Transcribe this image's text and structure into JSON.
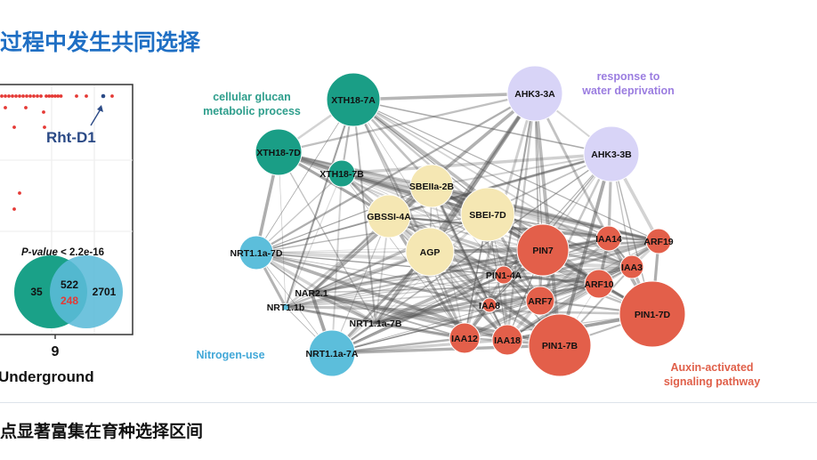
{
  "title": "过程中发生共同选择",
  "caption": "点显著富集在育种选择区间",
  "panel_left": {
    "gene_label": "Rht-D1",
    "pvalue_prefix": "P-value",
    "pvalue_rest": " < 2.2e-16",
    "venn_left_only": "35",
    "venn_overlap": "522",
    "venn_overlap_sub": "248",
    "venn_right_only": "2701",
    "x_tick": "9",
    "x_label": "Underground",
    "colors": {
      "left_circle": "#1aa188",
      "right_circle": "#5bbbd8",
      "highlight": "#e53935",
      "dot": "#e53935",
      "gene": "#2b4a86"
    }
  },
  "network": {
    "groups": [
      {
        "id": "glucan",
        "label_lines": [
          "cellular glucan",
          "metabolic process"
        ],
        "color": "#2e9e8c"
      },
      {
        "id": "water",
        "label_lines": [
          "response to",
          "water deprivation"
        ],
        "color": "#9b7de0"
      },
      {
        "id": "nitrogen",
        "label_lines": [
          "Nitrogen-use"
        ],
        "color": "#42a8d8"
      },
      {
        "id": "auxin",
        "label_lines": [
          "Auxin-activated",
          "signaling pathway"
        ],
        "color": "#e0604a"
      }
    ],
    "nodes": [
      {
        "id": "XTH18-7A",
        "group": "glucan"
      },
      {
        "id": "XTH18-7D",
        "group": "glucan"
      },
      {
        "id": "XTH18-7B",
        "group": "glucan"
      },
      {
        "id": "AHK3-3A",
        "group": "water"
      },
      {
        "id": "AHK3-3B",
        "group": "water"
      },
      {
        "id": "SBEIIa-2B",
        "group": "starch"
      },
      {
        "id": "SBEI-7D",
        "group": "starch"
      },
      {
        "id": "GBSSI-4A",
        "group": "starch"
      },
      {
        "id": "AGP",
        "group": "starch"
      },
      {
        "id": "NRT1.1a-7D",
        "group": "nitrogen"
      },
      {
        "id": "NAR2.1",
        "group": "nitrogen"
      },
      {
        "id": "NRT1.1b",
        "group": "nitrogen"
      },
      {
        "id": "NRT1.1a-7B",
        "group": "nitrogen"
      },
      {
        "id": "NRT1.1a-7A",
        "group": "nitrogen"
      },
      {
        "id": "PIN7",
        "group": "auxin"
      },
      {
        "id": "IAA14",
        "group": "auxin"
      },
      {
        "id": "ARF19",
        "group": "auxin"
      },
      {
        "id": "IAA3",
        "group": "auxin"
      },
      {
        "id": "PIN1-4A",
        "group": "auxin"
      },
      {
        "id": "ARF10",
        "group": "auxin"
      },
      {
        "id": "ARF7",
        "group": "auxin"
      },
      {
        "id": "IAA8",
        "group": "auxin"
      },
      {
        "id": "PIN1-7D",
        "group": "auxin"
      },
      {
        "id": "IAA12",
        "group": "auxin"
      },
      {
        "id": "IAA18",
        "group": "auxin"
      },
      {
        "id": "PIN1-7B",
        "group": "auxin"
      }
    ],
    "colors": {
      "glucan": "#1a9e86",
      "water": "#d8d4f7",
      "starch": "#f5e7b3",
      "nitrogen": "#5cbedb",
      "auxin": "#e35f4a",
      "edge": "#555555"
    }
  }
}
